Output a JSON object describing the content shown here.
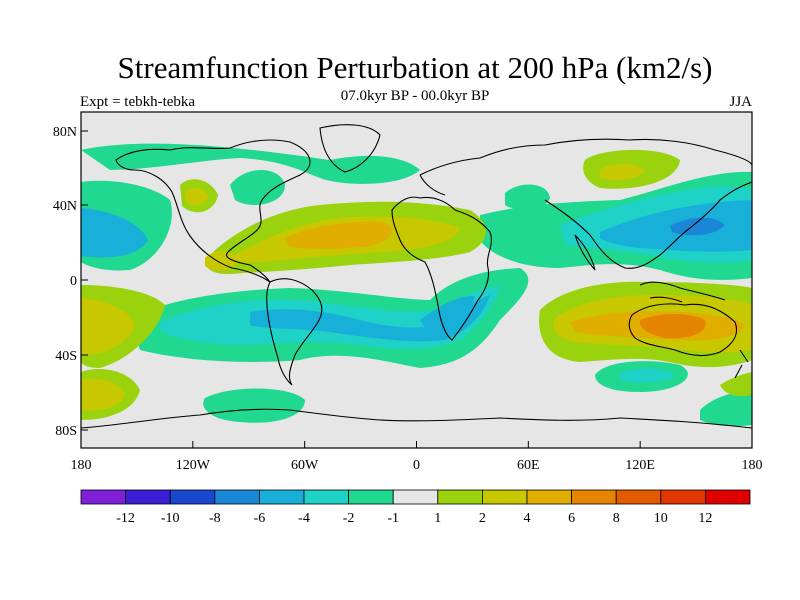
{
  "title": "Streamfunction Perturbation at 200 hPa (km2/s)",
  "subtitle": "07.0kyr BP - 00.0kyr BP",
  "left_label": "Expt = tebkh-tebka",
  "right_label": "JJA",
  "lat_ticks": [
    "80N",
    "40N",
    "0",
    "40S",
    "80S"
  ],
  "lon_ticks": [
    "180",
    "120W",
    "60W",
    "0",
    "60E",
    "120E",
    "180"
  ],
  "colorbar": {
    "labels": [
      "-12",
      "-10",
      "-8",
      "-6",
      "-4",
      "-2",
      "-1",
      "1",
      "2",
      "4",
      "6",
      "8",
      "10",
      "12"
    ],
    "colors": [
      "#7f1fd8",
      "#3a1fd6",
      "#1848d0",
      "#1a86d8",
      "#18b0d8",
      "#1ed2c8",
      "#20d890",
      "#e6e6e6",
      "#9ad20e",
      "#c8c800",
      "#e0ae00",
      "#e58400",
      "#e45a00",
      "#e23600",
      "#e00000"
    ]
  },
  "colors": {
    "neutral": "#e6e6e6",
    "pos1": "#9ad20e",
    "pos2": "#c8c800",
    "pos3": "#e0ae00",
    "pos4": "#e58400",
    "neg1": "#20d890",
    "neg2": "#1ed2c8",
    "neg3": "#18b0d8",
    "neg4": "#1a86d8"
  }
}
